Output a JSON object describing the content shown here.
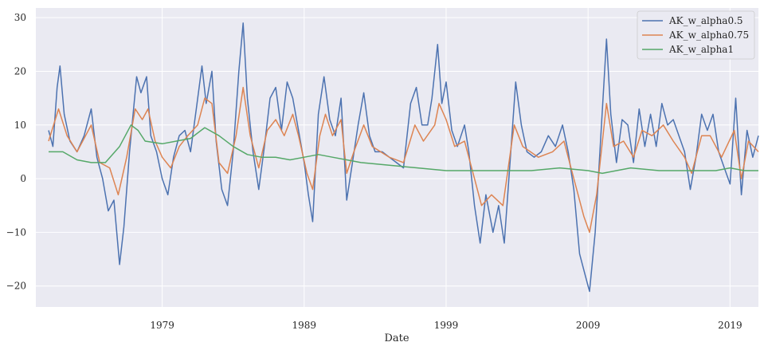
{
  "chart_data": {
    "type": "line",
    "title": "",
    "xlabel": "Date",
    "ylabel": "",
    "xlim": [
      1970.1,
      2021.0
    ],
    "ylim": [
      -23.9,
      31.8
    ],
    "xticks": [
      1979,
      1989,
      1999,
      2009,
      2019
    ],
    "xtick_labels": [
      "1979",
      "1989",
      "1999",
      "2009",
      "2019"
    ],
    "yticks": [
      -20,
      -10,
      0,
      10,
      20,
      30
    ],
    "ytick_labels": [
      "−20",
      "−10",
      "0",
      "10",
      "20",
      "30"
    ],
    "grid": true,
    "legend_position": "top-right",
    "colors": {
      "background": "#EAEAF2",
      "grid": "#FFFFFF"
    },
    "series": [
      {
        "name": "AK_w_alpha0.5",
        "color": "#4C72B0",
        "x": [
          1971.0,
          1971.3,
          1971.6,
          1971.8,
          1972.1,
          1972.5,
          1973.0,
          1973.5,
          1974.0,
          1974.4,
          1974.8,
          1975.2,
          1975.6,
          1976.0,
          1976.3,
          1976.7,
          1977.2,
          1977.5,
          1977.9,
          1978.2,
          1978.6,
          1979.0,
          1979.4,
          1979.8,
          1980.2,
          1980.6,
          1981.0,
          1981.4,
          1981.8,
          1982.1,
          1982.5,
          1982.8,
          1983.2,
          1983.6,
          1984.0,
          1984.4,
          1984.7,
          1985.0,
          1985.4,
          1985.8,
          1986.2,
          1986.6,
          1987.0,
          1987.4,
          1987.8,
          1988.2,
          1988.6,
          1989.0,
          1989.3,
          1989.6,
          1990.0,
          1990.4,
          1990.8,
          1991.2,
          1991.6,
          1992.0,
          1992.4,
          1992.8,
          1993.2,
          1993.6,
          1994.0,
          1994.5,
          1995.0,
          1995.5,
          1996.0,
          1996.5,
          1996.9,
          1997.3,
          1997.7,
          1998.0,
          1998.4,
          1998.7,
          1999.0,
          1999.4,
          1999.8,
          2000.3,
          2000.6,
          2001.0,
          2001.4,
          2001.8,
          2002.3,
          2002.7,
          2003.1,
          2003.5,
          2003.9,
          2004.3,
          2004.7,
          2005.2,
          2005.7,
          2006.2,
          2006.7,
          2007.2,
          2007.6,
          2008.0,
          2008.4,
          2008.8,
          2009.1,
          2009.5,
          2009.9,
          2010.3,
          2010.6,
          2011.0,
          2011.4,
          2011.8,
          2012.2,
          2012.6,
          2013.0,
          2013.4,
          2013.8,
          2014.2,
          2014.6,
          2015.0,
          2015.4,
          2015.8,
          2016.2,
          2016.6,
          2017.0,
          2017.4,
          2017.8,
          2018.2,
          2018.6,
          2019.0,
          2019.4,
          2019.8,
          2020.2,
          2020.6,
          2021.0
        ],
        "y": [
          9,
          6,
          17,
          21,
          12,
          7,
          5,
          8,
          13,
          4,
          0,
          -6,
          -4,
          -16,
          -9,
          5,
          19,
          16,
          19,
          8,
          5,
          0,
          -3,
          4,
          8,
          9,
          5,
          13,
          21,
          14,
          20,
          7,
          -2,
          -5,
          5,
          20,
          29,
          15,
          5,
          -2,
          6,
          15,
          17,
          9,
          18,
          15,
          9,
          3,
          -3,
          -8,
          12,
          19,
          11,
          8,
          15,
          -4,
          3,
          10,
          16,
          8,
          5,
          5,
          4,
          3,
          2,
          14,
          17,
          10,
          10,
          15,
          25,
          14,
          18,
          9,
          6,
          10,
          5,
          -5,
          -12,
          -3,
          -10,
          -5,
          -12,
          3,
          18,
          10,
          5,
          4,
          5,
          8,
          6,
          10,
          5,
          -2,
          -14,
          -18,
          -21,
          -10,
          8,
          26,
          12,
          3,
          11,
          10,
          3,
          13,
          6,
          12,
          6,
          14,
          10,
          11,
          8,
          5,
          -2,
          4,
          12,
          9,
          12,
          5,
          2,
          -1,
          15,
          -3,
          9,
          4,
          8
        ]
      },
      {
        "name": "AK_w_alpha0.75",
        "color": "#DD8452",
        "x": [
          1971.0,
          1971.7,
          1972.3,
          1973.0,
          1974.0,
          1974.6,
          1975.3,
          1975.9,
          1976.5,
          1977.1,
          1977.6,
          1978.0,
          1978.5,
          1979.0,
          1979.6,
          1980.2,
          1980.8,
          1981.5,
          1982.0,
          1982.5,
          1983.0,
          1983.6,
          1984.2,
          1984.7,
          1985.2,
          1985.8,
          1986.4,
          1987.0,
          1987.6,
          1988.2,
          1988.6,
          1989.2,
          1989.6,
          1990.1,
          1990.5,
          1991.0,
          1991.6,
          1992.0,
          1992.5,
          1993.2,
          1993.8,
          1995.0,
          1996.0,
          1996.8,
          1997.4,
          1998.2,
          1998.5,
          1999.0,
          1999.6,
          2000.3,
          2001.0,
          2001.5,
          2002.2,
          2003.0,
          2003.8,
          2004.4,
          2005.5,
          2006.5,
          2007.3,
          2008.0,
          2008.7,
          2009.1,
          2009.6,
          2010.3,
          2010.8,
          2011.5,
          2012.2,
          2012.8,
          2013.5,
          2014.3,
          2015.0,
          2015.8,
          2016.3,
          2017.0,
          2017.6,
          2018.4,
          2019.3,
          2019.8,
          2020.3,
          2021.0
        ],
        "y": [
          7,
          13,
          8,
          5,
          10,
          3,
          2,
          -3,
          4,
          13,
          11,
          13,
          7,
          4,
          2,
          6,
          8,
          10,
          15,
          14,
          3,
          1,
          8,
          17,
          8,
          2,
          9,
          11,
          8,
          12,
          8,
          1,
          -2,
          8,
          12,
          8,
          11,
          1,
          5,
          10,
          6,
          4,
          3,
          10,
          7,
          10,
          14,
          11,
          6,
          7,
          0,
          -5,
          -3,
          -5,
          10,
          6,
          4,
          5,
          7,
          0,
          -7,
          -10,
          -3,
          14,
          6,
          7,
          4,
          9,
          8,
          10,
          7,
          4,
          1,
          8,
          8,
          4,
          9,
          0,
          7,
          5
        ]
      },
      {
        "name": "AK_w_alpha1",
        "color": "#55A868",
        "x": [
          1971,
          1972,
          1973,
          1974,
          1975,
          1976,
          1976.8,
          1977.3,
          1977.8,
          1979,
          1980,
          1981,
          1982,
          1983,
          1984,
          1985,
          1986,
          1987,
          1988,
          1989,
          1990,
          1991,
          1992,
          1993,
          1995,
          1997,
          1999,
          2001,
          2003,
          2005,
          2007,
          2009,
          2010,
          2011,
          2012,
          2014,
          2016,
          2018,
          2019,
          2020,
          2021
        ],
        "y": [
          5,
          5,
          3.5,
          3,
          3,
          6,
          10,
          9,
          7,
          6.5,
          7,
          7.5,
          9.5,
          8,
          6,
          4.5,
          4,
          4,
          3.5,
          4,
          4.5,
          4,
          3.5,
          3,
          2.5,
          2,
          1.5,
          1.5,
          1.5,
          1.5,
          2,
          1.5,
          1,
          1.5,
          2,
          1.5,
          1.5,
          1.5,
          2,
          1.5,
          1.5
        ]
      }
    ]
  }
}
